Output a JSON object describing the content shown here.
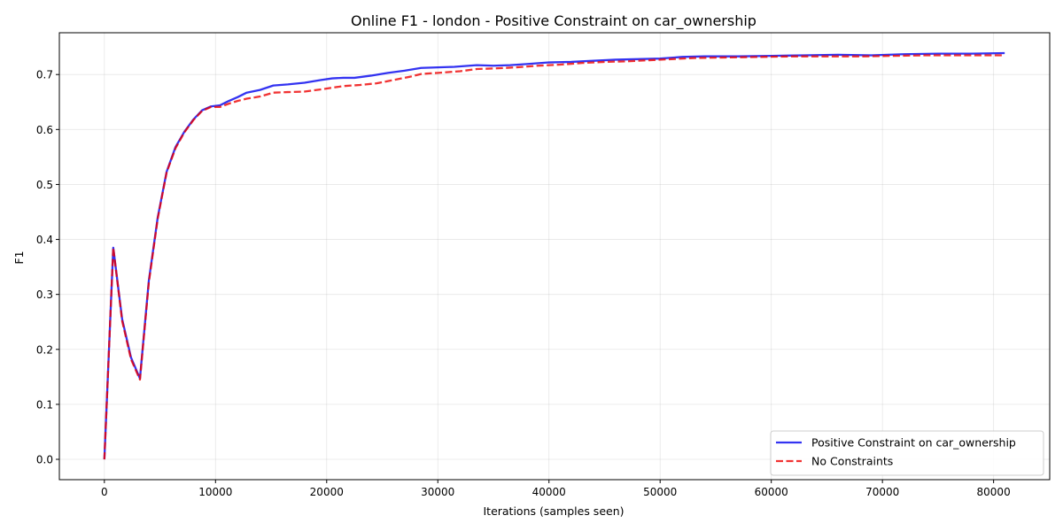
{
  "chart_data": {
    "type": "line",
    "title": "Online F1 - london - Positive Constraint on car_ownership",
    "xlabel": "Iterations (samples seen)",
    "ylabel": "F1",
    "xlim": [
      -4050,
      85050
    ],
    "ylim": [
      -0.037,
      0.776
    ],
    "x_ticks": [
      0,
      10000,
      20000,
      30000,
      40000,
      50000,
      60000,
      70000,
      80000
    ],
    "y_ticks": [
      0.0,
      0.1,
      0.2,
      0.3,
      0.4,
      0.5,
      0.6,
      0.7
    ],
    "grid": true,
    "legend_position": "lower-right",
    "series": [
      {
        "name": "Positive Constraint on car_ownership",
        "color": "#0000ee",
        "style": "solid",
        "points": [
          [
            0,
            0.0
          ],
          [
            800,
            0.385
          ],
          [
            1600,
            0.255
          ],
          [
            2400,
            0.185
          ],
          [
            3200,
            0.147
          ],
          [
            4000,
            0.325
          ],
          [
            4800,
            0.44
          ],
          [
            5600,
            0.523
          ],
          [
            6400,
            0.568
          ],
          [
            7200,
            0.596
          ],
          [
            8000,
            0.618
          ],
          [
            8800,
            0.635
          ],
          [
            9600,
            0.642
          ],
          [
            10400,
            0.644
          ],
          [
            11200,
            0.652
          ],
          [
            12000,
            0.659
          ],
          [
            12800,
            0.667
          ],
          [
            14000,
            0.672
          ],
          [
            15200,
            0.68
          ],
          [
            16500,
            0.682
          ],
          [
            18000,
            0.685
          ],
          [
            19500,
            0.69
          ],
          [
            20500,
            0.693
          ],
          [
            21500,
            0.694
          ],
          [
            22500,
            0.694
          ],
          [
            24000,
            0.698
          ],
          [
            25500,
            0.703
          ],
          [
            27000,
            0.707
          ],
          [
            28500,
            0.712
          ],
          [
            30000,
            0.713
          ],
          [
            31500,
            0.714
          ],
          [
            33500,
            0.717
          ],
          [
            35000,
            0.716
          ],
          [
            36500,
            0.717
          ],
          [
            38000,
            0.719
          ],
          [
            40000,
            0.722
          ],
          [
            42000,
            0.723
          ],
          [
            44000,
            0.725
          ],
          [
            46000,
            0.727
          ],
          [
            48000,
            0.728
          ],
          [
            50000,
            0.729
          ],
          [
            52000,
            0.732
          ],
          [
            54000,
            0.733
          ],
          [
            57000,
            0.733
          ],
          [
            60000,
            0.734
          ],
          [
            63000,
            0.735
          ],
          [
            66000,
            0.736
          ],
          [
            69000,
            0.735
          ],
          [
            72000,
            0.737
          ],
          [
            75000,
            0.738
          ],
          [
            78000,
            0.738
          ],
          [
            81000,
            0.739
          ]
        ]
      },
      {
        "name": "No Constraints",
        "color": "#ee0000",
        "style": "dashed",
        "points": [
          [
            0,
            0.0
          ],
          [
            800,
            0.385
          ],
          [
            1600,
            0.252
          ],
          [
            2400,
            0.182
          ],
          [
            3200,
            0.145
          ],
          [
            4000,
            0.322
          ],
          [
            4800,
            0.438
          ],
          [
            5600,
            0.522
          ],
          [
            6400,
            0.566
          ],
          [
            7200,
            0.595
          ],
          [
            8000,
            0.617
          ],
          [
            8800,
            0.634
          ],
          [
            9600,
            0.641
          ],
          [
            10400,
            0.641
          ],
          [
            11200,
            0.647
          ],
          [
            12000,
            0.652
          ],
          [
            12800,
            0.656
          ],
          [
            14000,
            0.66
          ],
          [
            15200,
            0.667
          ],
          [
            16500,
            0.668
          ],
          [
            18000,
            0.669
          ],
          [
            19500,
            0.673
          ],
          [
            20500,
            0.676
          ],
          [
            21500,
            0.679
          ],
          [
            23000,
            0.681
          ],
          [
            24500,
            0.684
          ],
          [
            26000,
            0.69
          ],
          [
            27500,
            0.696
          ],
          [
            28500,
            0.701
          ],
          [
            30000,
            0.703
          ],
          [
            32000,
            0.706
          ],
          [
            33500,
            0.71
          ],
          [
            35000,
            0.711
          ],
          [
            37000,
            0.713
          ],
          [
            39000,
            0.716
          ],
          [
            41000,
            0.718
          ],
          [
            43000,
            0.721
          ],
          [
            45000,
            0.723
          ],
          [
            47000,
            0.724
          ],
          [
            49000,
            0.726
          ],
          [
            51000,
            0.728
          ],
          [
            53000,
            0.73
          ],
          [
            56000,
            0.731
          ],
          [
            59000,
            0.732
          ],
          [
            62000,
            0.733
          ],
          [
            65000,
            0.733
          ],
          [
            68000,
            0.733
          ],
          [
            71000,
            0.734
          ],
          [
            74000,
            0.735
          ],
          [
            77000,
            0.735
          ],
          [
            81000,
            0.735
          ]
        ]
      }
    ]
  }
}
